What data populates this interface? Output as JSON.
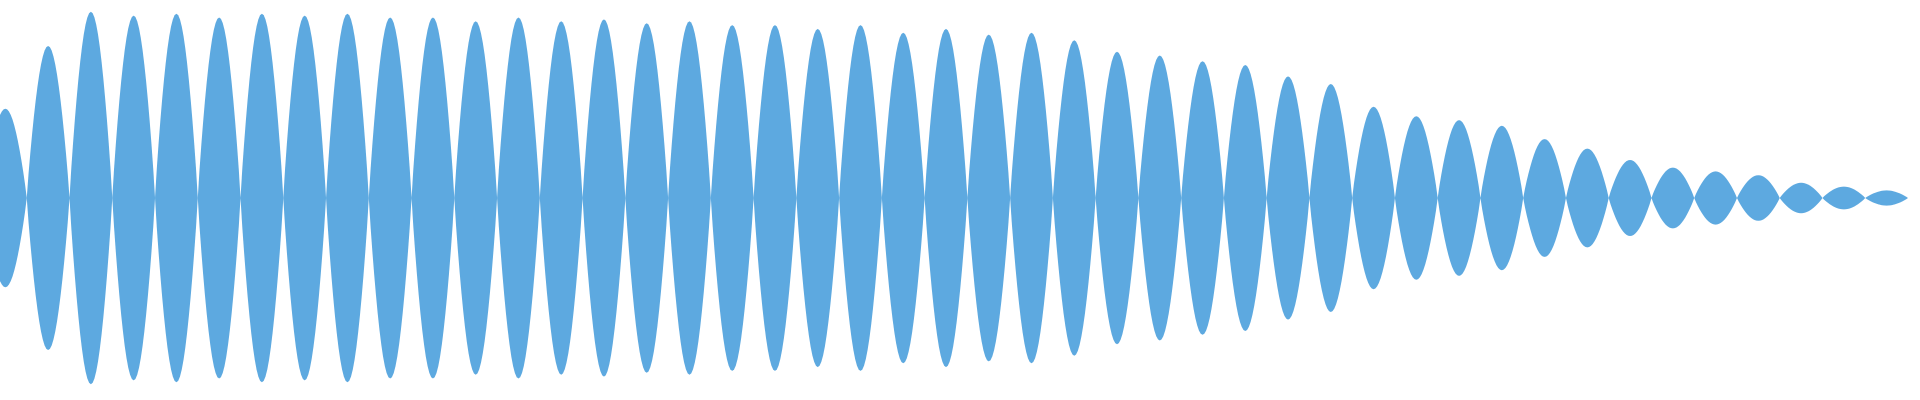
{
  "waveform": {
    "color": "#5da9e0",
    "background": "#ffffff",
    "style": "mirrored-lobes",
    "lobe_count": 45,
    "amplitudes": [
      0.47,
      0.8,
      0.98,
      0.96,
      0.97,
      0.95,
      0.97,
      0.96,
      0.97,
      0.95,
      0.95,
      0.93,
      0.95,
      0.93,
      0.94,
      0.92,
      0.93,
      0.91,
      0.91,
      0.89,
      0.91,
      0.87,
      0.89,
      0.86,
      0.87,
      0.83,
      0.77,
      0.75,
      0.72,
      0.7,
      0.64,
      0.6,
      0.48,
      0.43,
      0.41,
      0.38,
      0.31,
      0.26,
      0.2,
      0.16,
      0.14,
      0.12,
      0.08,
      0.06,
      0.04
    ]
  }
}
